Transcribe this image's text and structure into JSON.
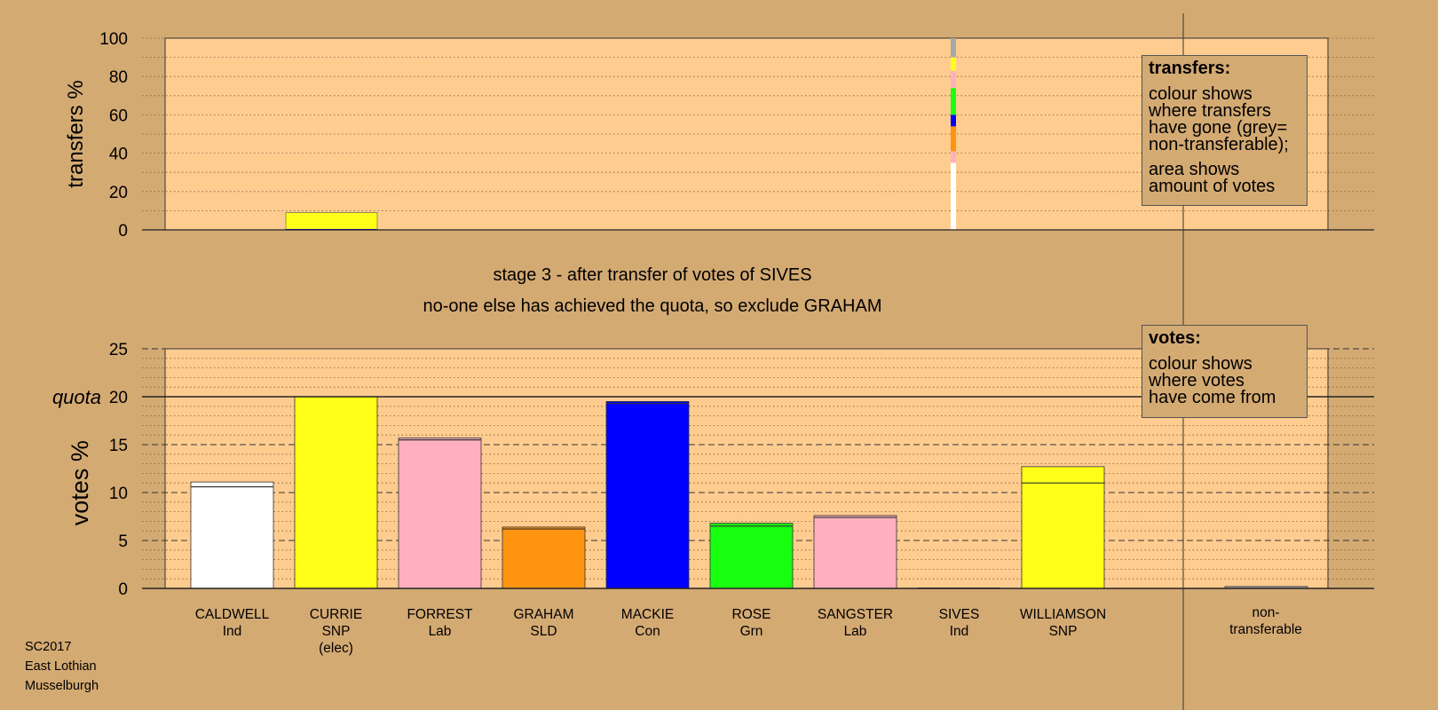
{
  "colors": {
    "page_background": "#d4aa73",
    "plot_background": "#ffcc90",
    "CALDWELL": "#ffffff",
    "CURRIE": "#ffff18",
    "FORREST": "#ffb0c0",
    "GRAHAM": "#ff9410",
    "MACKIE": "#0000ff",
    "ROSE": "#18ff10",
    "SANGSTER": "#ffb0c0",
    "SIVES": "#ffffff",
    "WILLIAMSON": "#ffff18",
    "non-transferable": "#a8a8a8"
  },
  "stage": {
    "title": "stage 3 - after transfer of votes of SIVES",
    "subtitle": "no-one else has achieved the quota, so exclude GRAHAM"
  },
  "footer": {
    "election": "SC2017",
    "council": "East Lothian",
    "ward": "Musselburgh"
  },
  "legends": {
    "transfers": {
      "title": "transfers:",
      "line1": "colour shows\nwhere transfers\nhave gone (grey=\nnon-transferable);",
      "line2": "area shows\namount of votes"
    },
    "votes": {
      "title": "votes:",
      "line1": "colour shows\nwhere votes\nhave come from"
    }
  },
  "chart_data": [
    {
      "type": "bar",
      "name": "transfers",
      "ylabel": "transfers %",
      "ylim": [
        0,
        100
      ],
      "yticks": [
        0,
        20,
        40,
        60,
        80,
        100
      ],
      "grid": "dotted",
      "note": "stacked bars of stage 3 transfers from SIVES; bar width proportional to amount of votes",
      "bars": [
        {
          "candidate": "CURRIE",
          "segments": [
            {
              "source": "MACKIE",
              "from": 0,
              "to": 0.5
            },
            {
              "source": "CURRIE",
              "from": 0.5,
              "to": 1
            },
            {
              "source": "CURRIE",
              "from": 1,
              "to": 9
            }
          ]
        },
        {
          "candidate": "SIVES",
          "segments": [
            {
              "source": "CALDWELL",
              "from": 0,
              "to": 35
            },
            {
              "source": "FORREST",
              "from": 35,
              "to": 41
            },
            {
              "source": "GRAHAM",
              "from": 41,
              "to": 54
            },
            {
              "source": "MACKIE",
              "from": 54,
              "to": 60
            },
            {
              "source": "ROSE",
              "from": 60,
              "to": 74
            },
            {
              "source": "SANGSTER",
              "from": 74,
              "to": 83
            },
            {
              "source": "WILLIAMSON",
              "from": 83,
              "to": 90
            },
            {
              "source": "non-transferable",
              "from": 90,
              "to": 100
            }
          ]
        }
      ]
    },
    {
      "type": "bar",
      "name": "votes",
      "ylabel": "votes %",
      "ylim": [
        0,
        25
      ],
      "yticks": [
        0,
        5,
        10,
        15,
        20,
        25
      ],
      "quota": 20,
      "quota_label": "quota",
      "grid": "dashed",
      "categories": [
        {
          "name": "CALDWELL",
          "party": "Ind",
          "value": 11.1,
          "base": 10.6,
          "color_key": "CALDWELL"
        },
        {
          "name": "CURRIE",
          "party": "SNP",
          "note": "(elec)",
          "value": 20.0,
          "base": 20.0,
          "color_key": "CURRIE"
        },
        {
          "name": "FORREST",
          "party": "Lab",
          "value": 15.7,
          "base": 15.5,
          "color_key": "FORREST"
        },
        {
          "name": "GRAHAM",
          "party": "SLD",
          "value": 6.4,
          "base": 6.2,
          "color_key": "GRAHAM"
        },
        {
          "name": "MACKIE",
          "party": "Con",
          "value": 19.5,
          "base": 19.3,
          "color_key": "MACKIE"
        },
        {
          "name": "ROSE",
          "party": "Grn",
          "value": 6.8,
          "base": 6.5,
          "color_key": "ROSE"
        },
        {
          "name": "SANGSTER",
          "party": "Lab",
          "value": 7.6,
          "base": 7.4,
          "color_key": "SANGSTER"
        },
        {
          "name": "SIVES",
          "party": "Ind",
          "value": 0,
          "base": 0,
          "color_key": "SIVES"
        },
        {
          "name": "WILLIAMSON",
          "party": "SNP",
          "value": 12.7,
          "base": 11.0,
          "color_key": "WILLIAMSON"
        }
      ],
      "nontransferable": {
        "label_line1": "non-",
        "label_line2": "transferable",
        "value": 0.2
      }
    }
  ]
}
